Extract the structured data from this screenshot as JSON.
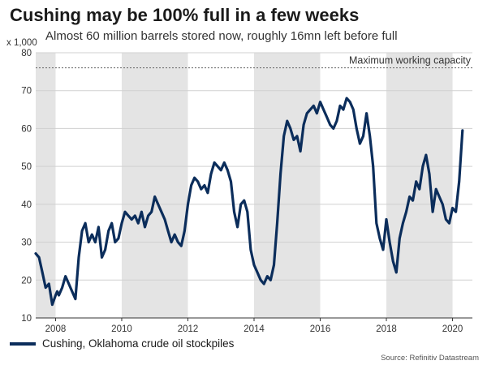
{
  "title": "Cushing may be 100% full in a few weeks",
  "subtitle": "Almost 60 million barrels stored now, roughly 16mn left before full",
  "y_unit_label": "x 1,000",
  "annotation": "Maximum working capacity",
  "legend_label": "Cushing, Oklahoma crude oil stockpiles",
  "source": "Source: Refinitiv Datastream",
  "colors": {
    "series": "#0b2d5b",
    "shade": "#e4e4e4",
    "capacity_line": "#666666"
  },
  "chart_data": {
    "type": "line",
    "title": "Cushing may be 100% full in a few weeks",
    "subtitle": "Almost 60 million barrels stored now, roughly 16mn left before full",
    "ylabel": "x 1,000",
    "xlim": [
      2007.4,
      2020.6
    ],
    "ylim": [
      10,
      80
    ],
    "yticks": [
      10,
      20,
      30,
      40,
      50,
      60,
      70,
      80
    ],
    "xticks": [
      2008,
      2010,
      2012,
      2014,
      2016,
      2018,
      2020
    ],
    "xtick_labels": [
      "2008",
      "2010",
      "2012",
      "2014",
      "2016",
      "2018",
      "2020"
    ],
    "shaded_intervals": [
      [
        2007.4,
        2008
      ],
      [
        2010,
        2012
      ],
      [
        2014,
        2016
      ],
      [
        2018,
        2020
      ]
    ],
    "reference_line": {
      "label": "Maximum working capacity",
      "y": 76
    },
    "legend": "bottom-left",
    "grid": "horizontal",
    "series": [
      {
        "name": "Cushing, Oklahoma crude oil stockpiles",
        "x": [
          2007.4,
          2007.5,
          2007.6,
          2007.7,
          2007.8,
          2007.9,
          2008.0,
          2008.05,
          2008.1,
          2008.2,
          2008.3,
          2008.4,
          2008.5,
          2008.6,
          2008.7,
          2008.8,
          2008.9,
          2009.0,
          2009.1,
          2009.2,
          2009.3,
          2009.4,
          2009.5,
          2009.6,
          2009.7,
          2009.8,
          2009.9,
          2010.0,
          2010.1,
          2010.2,
          2010.3,
          2010.4,
          2010.5,
          2010.6,
          2010.7,
          2010.8,
          2010.9,
          2011.0,
          2011.1,
          2011.2,
          2011.3,
          2011.4,
          2011.5,
          2011.6,
          2011.7,
          2011.8,
          2011.9,
          2012.0,
          2012.1,
          2012.2,
          2012.3,
          2012.4,
          2012.5,
          2012.6,
          2012.7,
          2012.8,
          2012.9,
          2013.0,
          2013.1,
          2013.2,
          2013.3,
          2013.4,
          2013.5,
          2013.6,
          2013.7,
          2013.8,
          2013.9,
          2014.0,
          2014.1,
          2014.2,
          2014.3,
          2014.4,
          2014.5,
          2014.6,
          2014.7,
          2014.8,
          2014.9,
          2015.0,
          2015.1,
          2015.2,
          2015.3,
          2015.4,
          2015.5,
          2015.6,
          2015.7,
          2015.8,
          2015.9,
          2016.0,
          2016.1,
          2016.2,
          2016.3,
          2016.4,
          2016.5,
          2016.6,
          2016.7,
          2016.8,
          2016.9,
          2017.0,
          2017.1,
          2017.2,
          2017.3,
          2017.4,
          2017.5,
          2017.6,
          2017.7,
          2017.8,
          2017.9,
          2018.0,
          2018.1,
          2018.2,
          2018.3,
          2018.4,
          2018.5,
          2018.6,
          2018.7,
          2018.8,
          2018.9,
          2019.0,
          2019.1,
          2019.2,
          2019.3,
          2019.4,
          2019.5,
          2019.6,
          2019.7,
          2019.8,
          2019.9,
          2020.0,
          2020.1,
          2020.2,
          2020.3
        ],
        "values": [
          27,
          26,
          22,
          18,
          19,
          13.5,
          16,
          17,
          16,
          18,
          21,
          19,
          17,
          15,
          26,
          33,
          35,
          30,
          32,
          30,
          34,
          26,
          28,
          33,
          35,
          30,
          31,
          35,
          38,
          37,
          36,
          37,
          35,
          38,
          34,
          37,
          38,
          42,
          40,
          38,
          36,
          33,
          30,
          32,
          30,
          29,
          33,
          40,
          45,
          47,
          46,
          44,
          45,
          43,
          48,
          51,
          50,
          49,
          51,
          49,
          46,
          38,
          34,
          40,
          41,
          38,
          28,
          24,
          22,
          20,
          19,
          21,
          20,
          24,
          35,
          48,
          58,
          62,
          60,
          57,
          58,
          54,
          61,
          64,
          65,
          66,
          64,
          67,
          65,
          63,
          61,
          60,
          62,
          66,
          65,
          68,
          67,
          65,
          60,
          56,
          58,
          64,
          58,
          50,
          35,
          31,
          28,
          36,
          30,
          25,
          22,
          31,
          35,
          38,
          42,
          41,
          46,
          44,
          50,
          53,
          48,
          38,
          44,
          42,
          40,
          36,
          35,
          39,
          38,
          46,
          59.5
        ]
      }
    ]
  }
}
